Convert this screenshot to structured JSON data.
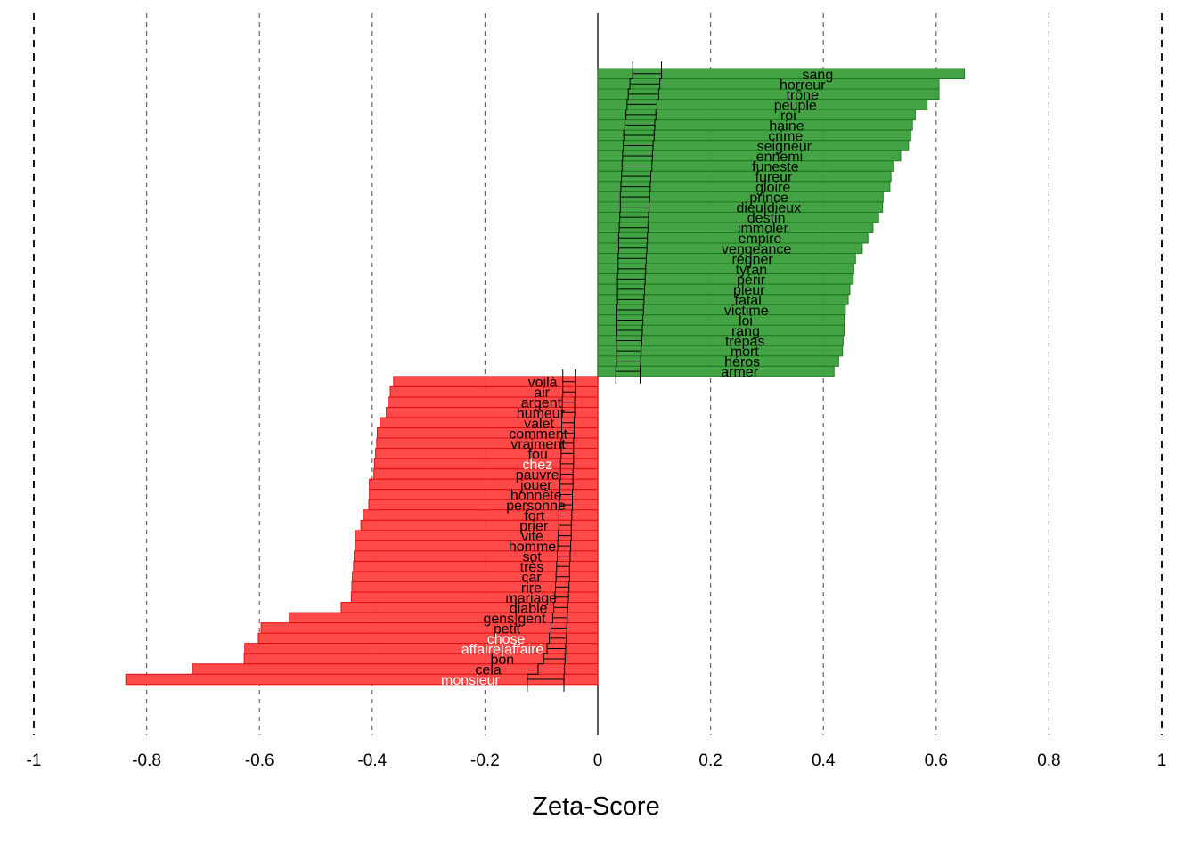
{
  "chart_data": {
    "type": "bar",
    "orientation": "horizontal",
    "xlabel": "Zeta-Score",
    "xlim": [
      -1,
      1
    ],
    "x_ticks": [
      -1,
      -0.8,
      -0.6,
      -0.4,
      -0.2,
      0,
      0.2,
      0.4,
      0.6,
      0.8,
      1
    ],
    "x_tick_labels": [
      "-1",
      "-0.8",
      "-0.6",
      "-0.4",
      "-0.2",
      "0",
      "0.2",
      "0.4",
      "0.6",
      "0.8",
      "1"
    ],
    "grid": "vertical dashed",
    "colors": {
      "positive": "#2ca02c",
      "negative": "#ff3333",
      "whisker": "#000000"
    },
    "series": [
      {
        "sign": "positive",
        "categories": [
          "sang",
          "horreur",
          "trône",
          "peuple",
          "roi",
          "haine",
          "crime",
          "seigneur",
          "ennemi",
          "funeste",
          "fureur",
          "gloire",
          "prince",
          "dieu|dieux",
          "destin",
          "immoler",
          "empire",
          "vengeance",
          "régner",
          "tyran",
          "périr",
          "pleur",
          "fatal",
          "victime",
          "loi",
          "rang",
          "trépas",
          "mort",
          "héros",
          "armer"
        ],
        "values": [
          0.65,
          0.605,
          0.605,
          0.584,
          0.563,
          0.558,
          0.555,
          0.551,
          0.537,
          0.525,
          0.52,
          0.518,
          0.506,
          0.505,
          0.498,
          0.488,
          0.479,
          0.469,
          0.457,
          0.454,
          0.453,
          0.447,
          0.444,
          0.439,
          0.437,
          0.437,
          0.435,
          0.434,
          0.427,
          0.419
        ],
        "intervals": [
          [
            0.062,
            0.113
          ],
          [
            0.057,
            0.11
          ],
          [
            0.054,
            0.108
          ],
          [
            0.052,
            0.105
          ],
          [
            0.05,
            0.103
          ],
          [
            0.048,
            0.101
          ],
          [
            0.046,
            0.1
          ],
          [
            0.045,
            0.098
          ],
          [
            0.044,
            0.097
          ],
          [
            0.043,
            0.096
          ],
          [
            0.042,
            0.094
          ],
          [
            0.041,
            0.093
          ],
          [
            0.04,
            0.092
          ],
          [
            0.04,
            0.091
          ],
          [
            0.039,
            0.09
          ],
          [
            0.038,
            0.089
          ],
          [
            0.037,
            0.088
          ],
          [
            0.037,
            0.087
          ],
          [
            0.036,
            0.086
          ],
          [
            0.036,
            0.085
          ],
          [
            0.035,
            0.084
          ],
          [
            0.035,
            0.083
          ],
          [
            0.035,
            0.082
          ],
          [
            0.034,
            0.081
          ],
          [
            0.034,
            0.08
          ],
          [
            0.034,
            0.079
          ],
          [
            0.033,
            0.078
          ],
          [
            0.033,
            0.077
          ],
          [
            0.033,
            0.076
          ],
          [
            0.032,
            0.075
          ]
        ]
      },
      {
        "sign": "negative",
        "categories": [
          "voilà",
          "air",
          "argent",
          "humeur",
          "valet",
          "comment",
          "vraiment",
          "fou",
          "chez",
          "pauvre",
          "jouer",
          "honnête",
          "personne",
          "fort",
          "prier",
          "vite",
          "homme",
          "sot",
          "très",
          "car",
          "rire",
          "mariage",
          "diable",
          "gens|gent",
          "petit",
          "chose",
          "affaire|affairé",
          "bon",
          "cela",
          "monsieur"
        ],
        "values": [
          -0.362,
          -0.368,
          -0.372,
          -0.375,
          -0.386,
          -0.391,
          -0.392,
          -0.394,
          -0.396,
          -0.397,
          -0.405,
          -0.405,
          -0.406,
          -0.416,
          -0.42,
          -0.43,
          -0.43,
          -0.432,
          -0.433,
          -0.435,
          -0.436,
          -0.437,
          -0.455,
          -0.547,
          -0.597,
          -0.602,
          -0.626,
          -0.627,
          -0.719,
          -0.837
        ],
        "label_white": [
          "chez",
          "chose",
          "affaire|affairé",
          "monsieur"
        ],
        "intervals": [
          [
            -0.062,
            -0.04
          ],
          [
            -0.062,
            -0.04
          ],
          [
            -0.063,
            -0.041
          ],
          [
            -0.063,
            -0.041
          ],
          [
            -0.064,
            -0.042
          ],
          [
            -0.064,
            -0.042
          ],
          [
            -0.065,
            -0.043
          ],
          [
            -0.065,
            -0.043
          ],
          [
            -0.066,
            -0.043
          ],
          [
            -0.066,
            -0.044
          ],
          [
            -0.067,
            -0.044
          ],
          [
            -0.067,
            -0.045
          ],
          [
            -0.068,
            -0.045
          ],
          [
            -0.069,
            -0.046
          ],
          [
            -0.069,
            -0.047
          ],
          [
            -0.07,
            -0.047
          ],
          [
            -0.071,
            -0.048
          ],
          [
            -0.072,
            -0.049
          ],
          [
            -0.073,
            -0.05
          ],
          [
            -0.074,
            -0.05
          ],
          [
            -0.075,
            -0.051
          ],
          [
            -0.076,
            -0.052
          ],
          [
            -0.078,
            -0.053
          ],
          [
            -0.08,
            -0.054
          ],
          [
            -0.083,
            -0.055
          ],
          [
            -0.086,
            -0.056
          ],
          [
            -0.09,
            -0.057
          ],
          [
            -0.096,
            -0.058
          ],
          [
            -0.106,
            -0.059
          ],
          [
            -0.125,
            -0.06
          ]
        ]
      }
    ]
  }
}
